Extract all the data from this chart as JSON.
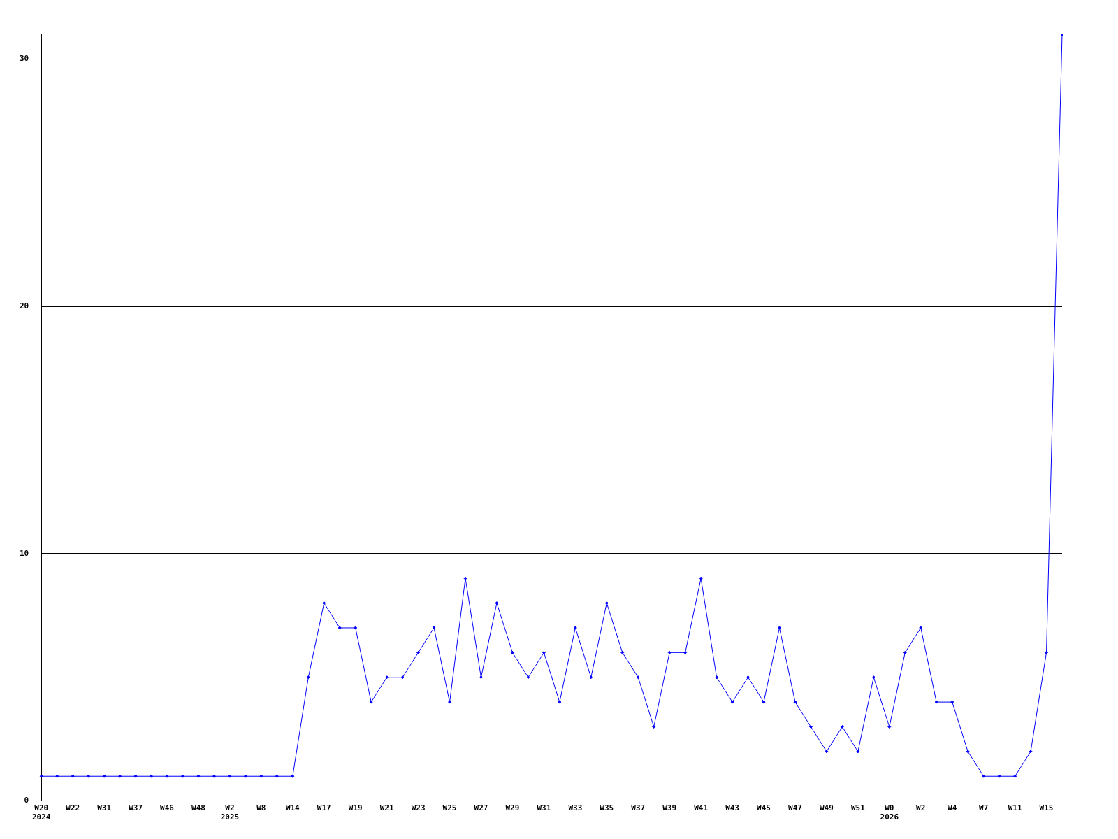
{
  "chart_data": {
    "type": "line",
    "categories": [
      "W20\n2024",
      null,
      "W22",
      null,
      "W31",
      null,
      "W37",
      null,
      "W46",
      null,
      "W48",
      null,
      "W2\n2025",
      null,
      "W8",
      null,
      "W14",
      null,
      "W17",
      null,
      "W19",
      null,
      "W21",
      null,
      "W23",
      null,
      "W25",
      null,
      "W27",
      null,
      "W29",
      null,
      "W31",
      null,
      "W33",
      null,
      "W35",
      null,
      "W37",
      null,
      "W39",
      null,
      "W41",
      null,
      "W43",
      null,
      "W45",
      null,
      "W47",
      null,
      "W49",
      null,
      "W51",
      null,
      "W0\n2026",
      null,
      "W2",
      null,
      "W4",
      null,
      "W7",
      null,
      "W11",
      null,
      "W15",
      null
    ],
    "series": [
      {
        "color": "#0000ff",
        "values": [
          1,
          1,
          1,
          1,
          1,
          1,
          1,
          1,
          1,
          1,
          1,
          1,
          1,
          1,
          1,
          1,
          1,
          5,
          8,
          7,
          7,
          4,
          5,
          5,
          6,
          7,
          4,
          9,
          5,
          8,
          6,
          5,
          6,
          4,
          7,
          5,
          8,
          6,
          5,
          3,
          6,
          6,
          9,
          5,
          4,
          5,
          4,
          7,
          4,
          3,
          2,
          3,
          2,
          5,
          3,
          6,
          7,
          4,
          4,
          2,
          1,
          1,
          1,
          2,
          6,
          31
        ]
      }
    ],
    "ylim": [
      0,
      31
    ],
    "yticks": [
      0,
      10,
      20,
      30
    ],
    "grid": "y",
    "legend": false,
    "marker": "diamond",
    "line_style": "solid"
  }
}
